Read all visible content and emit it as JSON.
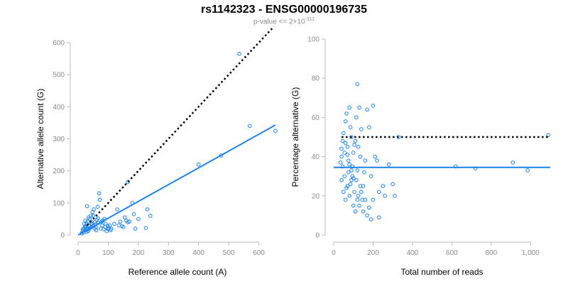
{
  "title": "rs1142323 - ENSG00000196735",
  "subtitle": {
    "base": "p-value <= 2×10",
    "exponent": "-311"
  },
  "colors": {
    "points": "#1f82e8",
    "fit": "#1f82e8",
    "reference": "#000000",
    "axis": "#bbbbbb",
    "tick_text": "#8a8a8a"
  },
  "chart_data": [
    {
      "type": "scatter",
      "xlabel": "Reference allele count (A)",
      "ylabel": "Alternative allele count (G)",
      "xlim": [
        0,
        660
      ],
      "ylim": [
        0,
        600
      ],
      "xticks": [
        "0",
        "100",
        "200",
        "300",
        "400",
        "500",
        "600"
      ],
      "yticks": [
        "0",
        "100",
        "200",
        "300",
        "400",
        "500",
        "600"
      ],
      "grid": false,
      "reference_line": {
        "style": "dotted",
        "from": [
          30,
          30
        ],
        "to": [
          650,
          650
        ]
      },
      "fit_line": {
        "style": "solid",
        "from": [
          0,
          0
        ],
        "to": [
          655,
          343
        ]
      },
      "points": [
        [
          20,
          20
        ],
        [
          25,
          28
        ],
        [
          15,
          12
        ],
        [
          30,
          18
        ],
        [
          22,
          25
        ],
        [
          28,
          10
        ],
        [
          35,
          30
        ],
        [
          40,
          22
        ],
        [
          18,
          8
        ],
        [
          45,
          35
        ],
        [
          50,
          28
        ],
        [
          55,
          40
        ],
        [
          60,
          25
        ],
        [
          38,
          50
        ],
        [
          42,
          60
        ],
        [
          48,
          72
        ],
        [
          52,
          80
        ],
        [
          65,
          88
        ],
        [
          70,
          130
        ],
        [
          72,
          110
        ],
        [
          30,
          90
        ],
        [
          35,
          55
        ],
        [
          55,
          20
        ],
        [
          60,
          15
        ],
        [
          75,
          20
        ],
        [
          80,
          30
        ],
        [
          85,
          18
        ],
        [
          90,
          25
        ],
        [
          95,
          12
        ],
        [
          100,
          18
        ],
        [
          105,
          30
        ],
        [
          110,
          20
        ],
        [
          120,
          35
        ],
        [
          130,
          80
        ],
        [
          135,
          30
        ],
        [
          140,
          42
        ],
        [
          145,
          28
        ],
        [
          150,
          25
        ],
        [
          155,
          55
        ],
        [
          160,
          45
        ],
        [
          165,
          40
        ],
        [
          170,
          42
        ],
        [
          180,
          100
        ],
        [
          185,
          65
        ],
        [
          190,
          20
        ],
        [
          200,
          50
        ],
        [
          225,
          22
        ],
        [
          230,
          80
        ],
        [
          240,
          60
        ],
        [
          165,
          165
        ],
        [
          400,
          220
        ],
        [
          475,
          248
        ],
        [
          535,
          565
        ],
        [
          570,
          340
        ],
        [
          655,
          325
        ],
        [
          25,
          15
        ],
        [
          28,
          35
        ],
        [
          32,
          42
        ],
        [
          36,
          18
        ],
        [
          44,
          25
        ],
        [
          46,
          40
        ],
        [
          58,
          33
        ],
        [
          62,
          48
        ],
        [
          66,
          52
        ],
        [
          68,
          38
        ],
        [
          78,
          42
        ],
        [
          82,
          45
        ],
        [
          88,
          50
        ],
        [
          92,
          35
        ],
        [
          98,
          28
        ],
        [
          102,
          22
        ],
        [
          108,
          15
        ],
        [
          20,
          35
        ],
        [
          24,
          45
        ],
        [
          38,
          28
        ],
        [
          50,
          60
        ],
        [
          12,
          5
        ],
        [
          16,
          18
        ],
        [
          26,
          22
        ],
        [
          34,
          12
        ]
      ]
    },
    {
      "type": "scatter",
      "xlabel": "Total number of reads",
      "ylabel": "Percentage alternative (G)",
      "xlim": [
        0,
        1100
      ],
      "ylim": [
        0,
        100
      ],
      "xticks": [
        "0",
        "200",
        "400",
        "600",
        "800",
        "1,000"
      ],
      "yticks": [
        "0",
        "20",
        "40",
        "60",
        "80",
        "100"
      ],
      "grid": false,
      "reference_line": {
        "style": "dotted",
        "y": 50,
        "from_x": 40,
        "to_x": 1100
      },
      "fit_line": {
        "style": "solid",
        "y": 34.5,
        "from_x": 0,
        "to_x": 1100
      },
      "points": [
        [
          40,
          40
        ],
        [
          45,
          48
        ],
        [
          50,
          52
        ],
        [
          55,
          30
        ],
        [
          60,
          58
        ],
        [
          65,
          62
        ],
        [
          70,
          45
        ],
        [
          75,
          38
        ],
        [
          80,
          65
        ],
        [
          85,
          55
        ],
        [
          90,
          50
        ],
        [
          95,
          35
        ],
        [
          100,
          42
        ],
        [
          110,
          48
        ],
        [
          115,
          60
        ],
        [
          120,
          77
        ],
        [
          125,
          45
        ],
        [
          130,
          65
        ],
        [
          135,
          40
        ],
        [
          140,
          54
        ],
        [
          150,
          25
        ],
        [
          160,
          38
        ],
        [
          170,
          64
        ],
        [
          180,
          55
        ],
        [
          190,
          30
        ],
        [
          200,
          66
        ],
        [
          210,
          40
        ],
        [
          220,
          38
        ],
        [
          230,
          22
        ],
        [
          250,
          25
        ],
        [
          260,
          20
        ],
        [
          280,
          36
        ],
        [
          300,
          26
        ],
        [
          310,
          20
        ],
        [
          330,
          50
        ],
        [
          40,
          28
        ],
        [
          50,
          22
        ],
        [
          60,
          18
        ],
        [
          70,
          25
        ],
        [
          80,
          20
        ],
        [
          90,
          28
        ],
        [
          100,
          15
        ],
        [
          110,
          12
        ],
        [
          120,
          18
        ],
        [
          130,
          15
        ],
        [
          140,
          22
        ],
        [
          150,
          12
        ],
        [
          160,
          18
        ],
        [
          170,
          10
        ],
        [
          180,
          14
        ],
        [
          190,
          8
        ],
        [
          200,
          18
        ],
        [
          230,
          9
        ],
        [
          45,
          35
        ],
        [
          55,
          42
        ],
        [
          65,
          24
        ],
        [
          75,
          32
        ],
        [
          85,
          26
        ],
        [
          95,
          30
        ],
        [
          105,
          22
        ],
        [
          115,
          28
        ],
        [
          125,
          20
        ],
        [
          135,
          25
        ],
        [
          145,
          18
        ],
        [
          155,
          32
        ],
        [
          35,
          37
        ],
        [
          40,
          44
        ],
        [
          60,
          47
        ],
        [
          70,
          41
        ],
        [
          80,
          36
        ],
        [
          90,
          33
        ],
        [
          100,
          29
        ],
        [
          105,
          46
        ],
        [
          120,
          33
        ],
        [
          620,
          35
        ],
        [
          720,
          34
        ],
        [
          910,
          37
        ],
        [
          985,
          33
        ],
        [
          1090,
          51
        ]
      ]
    }
  ]
}
